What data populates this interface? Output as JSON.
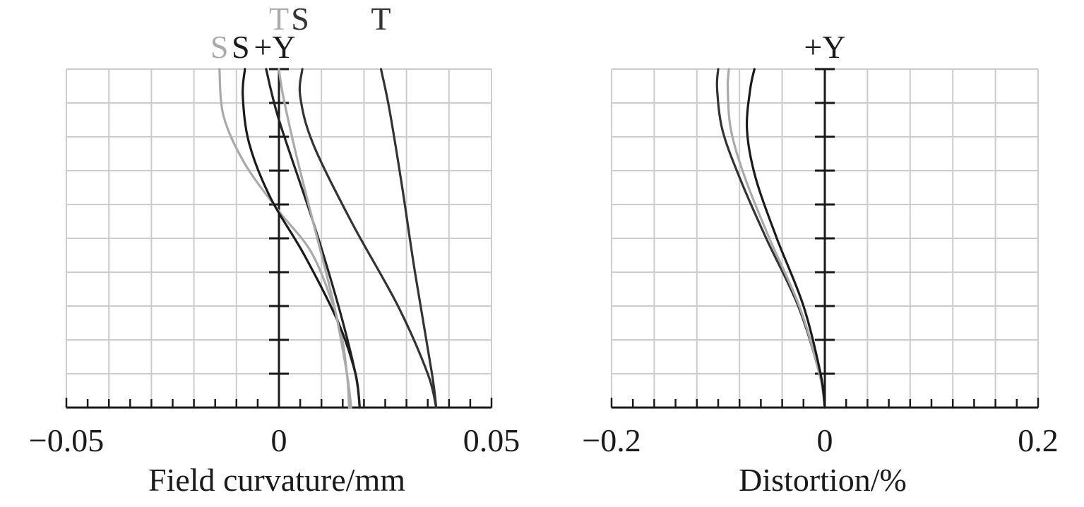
{
  "chart_data": [
    {
      "type": "line",
      "xlabel": "Field curvature/mm",
      "xlim": [
        -0.05,
        0.05
      ],
      "ylim": [
        0,
        1
      ],
      "x_ticks": [
        "−0.05",
        "0",
        "0.05"
      ],
      "grid": true,
      "curve_labels": [
        {
          "text": "T",
          "color": "#aaaaaa",
          "anchor": "top",
          "x": 0.0
        },
        {
          "text": "S",
          "color": "#333333",
          "anchor": "top",
          "x": 0.005
        },
        {
          "text": "T",
          "color": "#333333",
          "anchor": "top",
          "x": 0.024
        },
        {
          "text": "S",
          "color": "#aaaaaa",
          "anchor": "mid",
          "x": -0.014
        },
        {
          "text": "S",
          "color": "#1a1a1a",
          "anchor": "mid",
          "x": -0.009
        },
        {
          "text": "+Y",
          "color": "#1a1a1a",
          "anchor": "mid",
          "x": -0.001
        }
      ],
      "series": [
        {
          "color": "#aaaaaa",
          "x": [
            0.0165,
            0.016,
            0.014,
            0.008,
            0.0,
            -0.008,
            -0.013,
            -0.014
          ],
          "y": [
            0,
            0.1,
            0.25,
            0.45,
            0.58,
            0.72,
            0.86,
            1.0
          ]
        },
        {
          "color": "#1a1a1a",
          "x": [
            0.019,
            0.018,
            0.014,
            0.006,
            -0.002,
            -0.007,
            -0.0085,
            -0.008
          ],
          "y": [
            0,
            0.1,
            0.25,
            0.45,
            0.62,
            0.78,
            0.92,
            1.0
          ]
        },
        {
          "color": "#222222",
          "x": [
            0.019,
            0.018,
            0.014,
            0.008,
            0.0,
            -0.003
          ],
          "y": [
            0,
            0.1,
            0.3,
            0.55,
            0.85,
            1.0
          ]
        },
        {
          "color": "#aaaaaa",
          "x": [
            0.017,
            0.016,
            0.013,
            0.008,
            0.004,
            0.001,
            0.0
          ],
          "y": [
            0,
            0.1,
            0.3,
            0.55,
            0.75,
            0.92,
            1.0
          ]
        },
        {
          "color": "#333333",
          "x": [
            0.037,
            0.035,
            0.028,
            0.017,
            0.008,
            0.005,
            0.0055
          ],
          "y": [
            0,
            0.1,
            0.3,
            0.55,
            0.78,
            0.92,
            1.0
          ]
        },
        {
          "color": "#333333",
          "x": [
            0.037,
            0.036,
            0.032,
            0.029,
            0.026,
            0.024
          ],
          "y": [
            0,
            0.1,
            0.4,
            0.65,
            0.88,
            1.0
          ]
        }
      ]
    },
    {
      "type": "line",
      "xlabel": "Distortion/%",
      "xlim": [
        -0.2,
        0.2
      ],
      "ylim": [
        0,
        1
      ],
      "x_ticks": [
        "−0.2",
        "0",
        "0.2"
      ],
      "grid": true,
      "curve_labels": [
        {
          "text": "+Y",
          "color": "#1a1a1a",
          "anchor": "mid",
          "x": 0.0
        }
      ],
      "series": [
        {
          "color": "#333333",
          "x": [
            0.0,
            -0.005,
            -0.025,
            -0.055,
            -0.08,
            -0.096,
            -0.101,
            -0.1
          ],
          "y": [
            0,
            0.1,
            0.3,
            0.5,
            0.68,
            0.82,
            0.94,
            1.0
          ]
        },
        {
          "color": "#aaaaaa",
          "x": [
            0.0,
            -0.005,
            -0.024,
            -0.052,
            -0.075,
            -0.088,
            -0.091,
            -0.09
          ],
          "y": [
            0,
            0.1,
            0.3,
            0.5,
            0.68,
            0.82,
            0.94,
            1.0
          ]
        },
        {
          "color": "#1a1a1a",
          "x": [
            0.0,
            -0.004,
            -0.02,
            -0.045,
            -0.065,
            -0.073,
            -0.07,
            -0.066
          ],
          "y": [
            0,
            0.1,
            0.3,
            0.5,
            0.68,
            0.82,
            0.94,
            1.0
          ]
        }
      ]
    }
  ]
}
